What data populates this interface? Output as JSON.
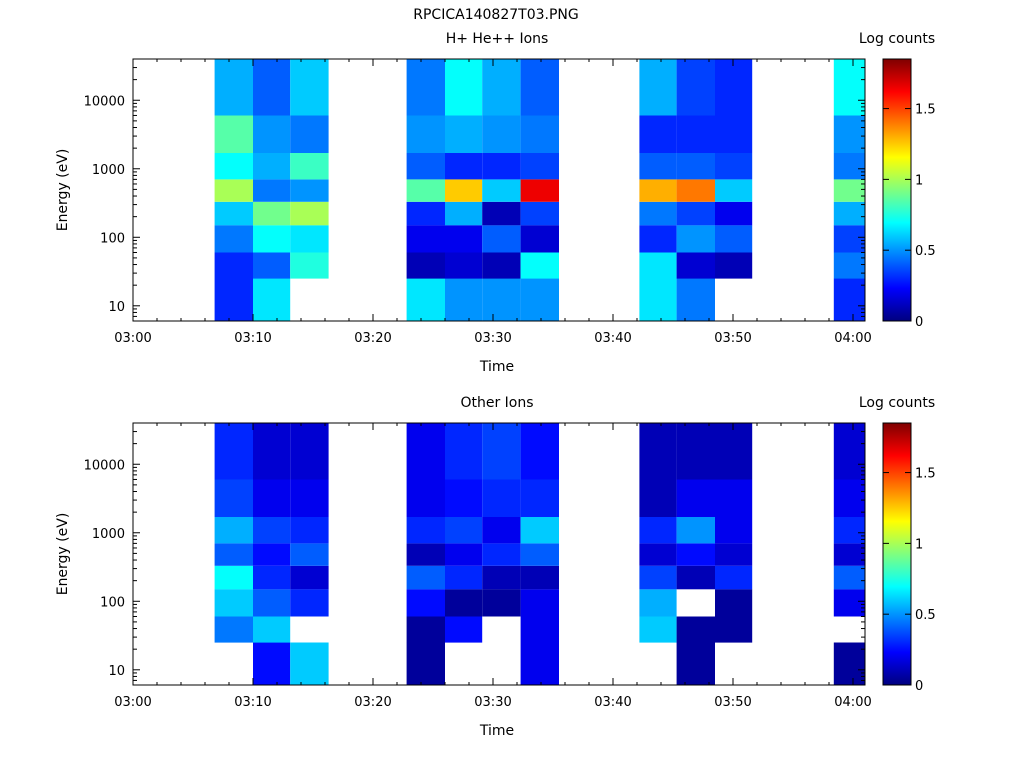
{
  "figure_title": "RPCICA140827T03.PNG",
  "colormap": [
    "#00007f",
    "#0000ff",
    "#007fff",
    "#00ffff",
    "#7fff7f",
    "#ffff00",
    "#ff7f00",
    "#ff0000",
    "#7f0000"
  ],
  "chart_data": [
    {
      "type": "heatmap",
      "title": "H+ He++ Ions",
      "xlabel": "Time",
      "ylabel": "Energy (eV)",
      "colorbar_label": "Log counts",
      "x_ticks": [
        "03:00",
        "03:10",
        "03:20",
        "03:30",
        "03:40",
        "03:50",
        "04:00"
      ],
      "xlim_minutes": [
        0,
        61
      ],
      "y_scale": "log",
      "y_ticks": [
        "10",
        "100",
        "1000",
        "10000"
      ],
      "ylim": [
        6,
        40000
      ],
      "colorbar_ticks": [
        "0",
        "0.5",
        "1",
        "1.5"
      ],
      "clim": [
        0,
        1.85
      ],
      "columns": [
        {
          "t0": 6.8,
          "t1": 10.0,
          "bins": [
            [
              6,
              60,
              0.3
            ],
            [
              60,
              150,
              0.45
            ],
            [
              150,
              330,
              0.6
            ],
            [
              330,
              700,
              1.0
            ],
            [
              700,
              1700,
              0.7
            ],
            [
              1700,
              6000,
              0.85
            ],
            [
              6000,
              40000,
              0.55
            ]
          ]
        },
        {
          "t0": 10.0,
          "t1": 13.1,
          "bins": [
            [
              6,
              25,
              0.65
            ],
            [
              25,
              60,
              0.4
            ],
            [
              60,
              150,
              0.7
            ],
            [
              150,
              330,
              0.9
            ],
            [
              330,
              700,
              0.45
            ],
            [
              700,
              1700,
              0.55
            ],
            [
              1700,
              6000,
              0.5
            ],
            [
              6000,
              40000,
              0.4
            ]
          ]
        },
        {
          "t0": 13.1,
          "t1": 16.3,
          "bins": [
            [
              25,
              60,
              0.75
            ],
            [
              60,
              150,
              0.65
            ],
            [
              150,
              330,
              1.0
            ],
            [
              330,
              700,
              0.5
            ],
            [
              700,
              1700,
              0.8
            ],
            [
              1700,
              6000,
              0.45
            ],
            [
              6000,
              40000,
              0.6
            ]
          ]
        },
        {
          "t0": 22.8,
          "t1": 26.0,
          "bins": [
            [
              6,
              25,
              0.65
            ],
            [
              25,
              60,
              0.1
            ],
            [
              60,
              150,
              0.2
            ],
            [
              150,
              330,
              0.3
            ],
            [
              330,
              700,
              0.85
            ],
            [
              700,
              1700,
              0.4
            ],
            [
              1700,
              6000,
              0.5
            ],
            [
              6000,
              40000,
              0.45
            ]
          ]
        },
        {
          "t0": 26.0,
          "t1": 29.1,
          "bins": [
            [
              6,
              25,
              0.5
            ],
            [
              25,
              60,
              0.15
            ],
            [
              60,
              150,
              0.2
            ],
            [
              150,
              330,
              0.55
            ],
            [
              330,
              700,
              1.25
            ],
            [
              700,
              1700,
              0.3
            ],
            [
              1700,
              6000,
              0.55
            ],
            [
              6000,
              40000,
              0.7
            ]
          ]
        },
        {
          "t0": 29.1,
          "t1": 32.3,
          "bins": [
            [
              6,
              25,
              0.5
            ],
            [
              25,
              60,
              0.1
            ],
            [
              60,
              150,
              0.4
            ],
            [
              150,
              330,
              0.1
            ],
            [
              330,
              700,
              0.6
            ],
            [
              700,
              1700,
              0.3
            ],
            [
              1700,
              6000,
              0.5
            ],
            [
              6000,
              40000,
              0.55
            ]
          ]
        },
        {
          "t0": 32.3,
          "t1": 35.5,
          "bins": [
            [
              6,
              25,
              0.5
            ],
            [
              25,
              60,
              0.7
            ],
            [
              60,
              150,
              0.15
            ],
            [
              150,
              330,
              0.35
            ],
            [
              330,
              700,
              1.65
            ],
            [
              700,
              1700,
              0.35
            ],
            [
              1700,
              6000,
              0.45
            ],
            [
              6000,
              40000,
              0.4
            ]
          ]
        },
        {
          "t0": 42.2,
          "t1": 45.3,
          "bins": [
            [
              6,
              60,
              0.65
            ],
            [
              60,
              150,
              0.3
            ],
            [
              150,
              330,
              0.45
            ],
            [
              330,
              700,
              1.3
            ],
            [
              700,
              1700,
              0.4
            ],
            [
              1700,
              6000,
              0.3
            ],
            [
              6000,
              40000,
              0.55
            ]
          ]
        },
        {
          "t0": 45.3,
          "t1": 48.5,
          "bins": [
            [
              6,
              25,
              0.45
            ],
            [
              25,
              60,
              0.15
            ],
            [
              60,
              150,
              0.5
            ],
            [
              150,
              330,
              0.35
            ],
            [
              330,
              700,
              1.4
            ],
            [
              700,
              1700,
              0.4
            ],
            [
              1700,
              6000,
              0.3
            ],
            [
              6000,
              40000,
              0.35
            ]
          ]
        },
        {
          "t0": 48.5,
          "t1": 51.6,
          "bins": [
            [
              25,
              60,
              0.1
            ],
            [
              60,
              150,
              0.4
            ],
            [
              150,
              330,
              0.2
            ],
            [
              330,
              700,
              0.6
            ],
            [
              700,
              1700,
              0.35
            ],
            [
              1700,
              6000,
              0.3
            ],
            [
              6000,
              40000,
              0.3
            ]
          ]
        },
        {
          "t0": 58.4,
          "t1": 61.0,
          "bins": [
            [
              6,
              25,
              0.3
            ],
            [
              25,
              60,
              0.45
            ],
            [
              60,
              150,
              0.35
            ],
            [
              150,
              330,
              0.55
            ],
            [
              330,
              700,
              0.9
            ],
            [
              700,
              1700,
              0.45
            ],
            [
              1700,
              6000,
              0.5
            ],
            [
              6000,
              40000,
              0.7
            ]
          ]
        }
      ]
    },
    {
      "type": "heatmap",
      "title": "Other Ions",
      "xlabel": "Time",
      "ylabel": "Energy (eV)",
      "colorbar_label": "Log counts",
      "x_ticks": [
        "03:00",
        "03:10",
        "03:20",
        "03:30",
        "03:40",
        "03:50",
        "04:00"
      ],
      "xlim_minutes": [
        0,
        61
      ],
      "y_scale": "log",
      "y_ticks": [
        "10",
        "100",
        "1000",
        "10000"
      ],
      "ylim": [
        6,
        40000
      ],
      "colorbar_ticks": [
        "0",
        "0.5",
        "1",
        "1.5"
      ],
      "clim": [
        0,
        1.85
      ],
      "columns": [
        {
          "t0": 6.8,
          "t1": 10.0,
          "bins": [
            [
              25,
              60,
              0.45
            ],
            [
              60,
              150,
              0.6
            ],
            [
              150,
              330,
              0.7
            ],
            [
              330,
              700,
              0.4
            ],
            [
              700,
              1700,
              0.55
            ],
            [
              1700,
              6000,
              0.35
            ],
            [
              6000,
              40000,
              0.3
            ]
          ]
        },
        {
          "t0": 10.0,
          "t1": 13.1,
          "bins": [
            [
              6,
              25,
              0.25
            ],
            [
              25,
              60,
              0.6
            ],
            [
              60,
              150,
              0.4
            ],
            [
              150,
              330,
              0.3
            ],
            [
              330,
              700,
              0.25
            ],
            [
              700,
              1700,
              0.35
            ],
            [
              1700,
              6000,
              0.2
            ],
            [
              6000,
              40000,
              0.15
            ]
          ]
        },
        {
          "t0": 13.1,
          "t1": 16.3,
          "bins": [
            [
              6,
              25,
              0.6
            ],
            [
              60,
              150,
              0.3
            ],
            [
              150,
              330,
              0.15
            ],
            [
              330,
              700,
              0.4
            ],
            [
              700,
              1700,
              0.3
            ],
            [
              1700,
              6000,
              0.2
            ],
            [
              6000,
              40000,
              0.15
            ]
          ]
        },
        {
          "t0": 22.8,
          "t1": 26.0,
          "bins": [
            [
              6,
              25,
              0.05
            ],
            [
              25,
              60,
              0.05
            ],
            [
              60,
              150,
              0.25
            ],
            [
              150,
              330,
              0.4
            ],
            [
              330,
              700,
              0.1
            ],
            [
              700,
              1700,
              0.3
            ],
            [
              1700,
              6000,
              0.2
            ],
            [
              6000,
              40000,
              0.2
            ]
          ]
        },
        {
          "t0": 26.0,
          "t1": 29.1,
          "bins": [
            [
              25,
              60,
              0.25
            ],
            [
              60,
              150,
              0.05
            ],
            [
              150,
              330,
              0.3
            ],
            [
              330,
              700,
              0.2
            ],
            [
              700,
              1700,
              0.35
            ],
            [
              1700,
              6000,
              0.25
            ],
            [
              6000,
              40000,
              0.3
            ]
          ]
        },
        {
          "t0": 29.1,
          "t1": 32.3,
          "bins": [
            [
              60,
              150,
              0.05
            ],
            [
              150,
              330,
              0.1
            ],
            [
              330,
              700,
              0.3
            ],
            [
              700,
              1700,
              0.2
            ],
            [
              1700,
              6000,
              0.3
            ],
            [
              6000,
              40000,
              0.35
            ]
          ]
        },
        {
          "t0": 32.3,
          "t1": 35.5,
          "bins": [
            [
              6,
              60,
              0.2
            ],
            [
              60,
              150,
              0.2
            ],
            [
              150,
              330,
              0.1
            ],
            [
              330,
              700,
              0.4
            ],
            [
              700,
              1700,
              0.6
            ],
            [
              1700,
              6000,
              0.3
            ],
            [
              6000,
              40000,
              0.25
            ]
          ]
        },
        {
          "t0": 42.2,
          "t1": 45.3,
          "bins": [
            [
              25,
              60,
              0.6
            ],
            [
              60,
              150,
              0.55
            ],
            [
              150,
              330,
              0.35
            ],
            [
              330,
              700,
              0.15
            ],
            [
              700,
              1700,
              0.3
            ],
            [
              1700,
              6000,
              0.1
            ],
            [
              6000,
              40000,
              0.1
            ]
          ]
        },
        {
          "t0": 45.3,
          "t1": 48.5,
          "bins": [
            [
              6,
              25,
              0.05
            ],
            [
              25,
              60,
              0.05
            ],
            [
              150,
              330,
              0.1
            ],
            [
              330,
              700,
              0.25
            ],
            [
              700,
              1700,
              0.5
            ],
            [
              1700,
              6000,
              0.2
            ],
            [
              6000,
              40000,
              0.1
            ]
          ]
        },
        {
          "t0": 48.5,
          "t1": 51.6,
          "bins": [
            [
              25,
              60,
              0.05
            ],
            [
              60,
              150,
              0.05
            ],
            [
              150,
              330,
              0.3
            ],
            [
              330,
              700,
              0.15
            ],
            [
              700,
              1700,
              0.2
            ],
            [
              1700,
              6000,
              0.2
            ],
            [
              6000,
              40000,
              0.1
            ]
          ]
        },
        {
          "t0": 58.4,
          "t1": 61.0,
          "bins": [
            [
              6,
              25,
              0.05
            ],
            [
              60,
              150,
              0.2
            ],
            [
              150,
              330,
              0.4
            ],
            [
              330,
              700,
              0.15
            ],
            [
              700,
              1700,
              0.3
            ],
            [
              1700,
              6000,
              0.2
            ],
            [
              6000,
              40000,
              0.15
            ]
          ]
        }
      ]
    }
  ]
}
